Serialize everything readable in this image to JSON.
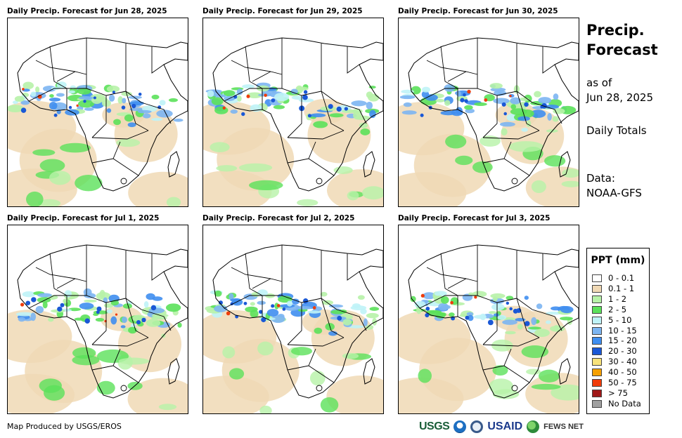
{
  "panels": [
    {
      "title": "Daily Precip. Forecast for Jun 28, 2025"
    },
    {
      "title": "Daily Precip. Forecast for Jun 29, 2025"
    },
    {
      "title": "Daily Precip. Forecast for Jun 30, 2025"
    },
    {
      "title": "Daily Precip. Forecast for Jul 1, 2025"
    },
    {
      "title": "Daily Precip. Forecast for Jul 2, 2025"
    },
    {
      "title": "Daily Precip. Forecast for Jul 3, 2025"
    }
  ],
  "side": {
    "title_line1": "Precip.",
    "title_line2": "Forecast",
    "asof_line1": "as of",
    "asof_line2": "Jun 28, 2025",
    "totals": "Daily Totals",
    "data_line1": "Data:",
    "data_line2": "NOAA-GFS"
  },
  "legend": {
    "title": "PPT (mm)",
    "items": [
      {
        "label": "0 - 0.1",
        "color": "#ffffff"
      },
      {
        "label": "0.1 - 1",
        "color": "#f0d9b5"
      },
      {
        "label": "1 - 2",
        "color": "#b7f2a8"
      },
      {
        "label": "2 - 5",
        "color": "#5be15a"
      },
      {
        "label": "5 - 10",
        "color": "#bff3f7"
      },
      {
        "label": "10 - 15",
        "color": "#7cb5f2"
      },
      {
        "label": "15 - 20",
        "color": "#3f8ef0"
      },
      {
        "label": "20 - 30",
        "color": "#1a58d6"
      },
      {
        "label": "30 - 40",
        "color": "#f7e27a"
      },
      {
        "label": "40 - 50",
        "color": "#f6a000"
      },
      {
        "label": "50 - 75",
        "color": "#f03c0a"
      },
      {
        "label": "> 75",
        "color": "#a01818"
      },
      {
        "label": "No Data",
        "color": "#a0a0a0"
      }
    ]
  },
  "credit": "Map Produced by USGS/EROS",
  "logos": {
    "usgs": "USGS",
    "usaid": "USAID",
    "fews": "FEWS NET"
  }
}
